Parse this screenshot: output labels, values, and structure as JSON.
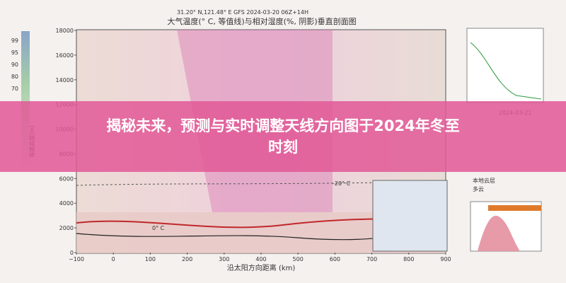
{
  "plot": {
    "header": "31.20° N,121.48° E GFS 2024-03-20 06Z+14H",
    "title": "大气温度(° C, 等值线)与相对湿度(%, 阴影)垂直剖面图",
    "y_axis_label": "海拔高度(m)",
    "x_axis_label": "沿太阳方向距离 (km)",
    "yticks": [
      "18000",
      "16000",
      "14000",
      "12000",
      "10000",
      "8000",
      "6000",
      "4000",
      "2000",
      "0"
    ],
    "xticks": [
      "−100",
      "0",
      "100",
      "200",
      "300",
      "400",
      "500",
      "600",
      "700",
      "800",
      "900"
    ],
    "colorbar_ticks": [
      "99",
      "95",
      "90",
      "80",
      "70"
    ],
    "contour_labels": [
      "-20° C",
      "0° C"
    ]
  },
  "side_panel": {
    "date": "2024-03-21",
    "cloud_title": "本地云层",
    "cloud_value": "多云"
  },
  "banner": {
    "lines": [
      "揭秘未来，预测与实时调整天线方向图于2024年冬至",
      "时刻"
    ]
  }
}
